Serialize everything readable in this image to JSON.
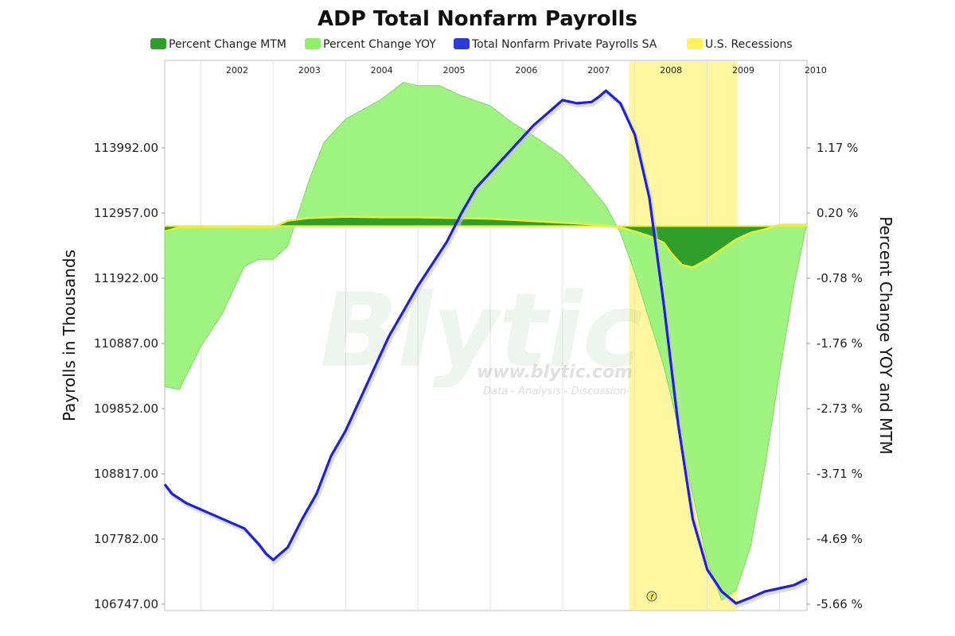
{
  "chart_data": {
    "type": "line",
    "title": "ADP Total Nonfarm Payrolls",
    "ylabel": "Payrolls in Thousands",
    "ylabel_right": "Percent Change YOY and MTM",
    "ylim": [
      106747,
      114500
    ],
    "ylim_right": [
      -5.66,
      1.8
    ],
    "xlim": [
      2001.5,
      2010.38
    ],
    "years": [
      2002,
      2003,
      2004,
      2005,
      2006,
      2007,
      2008,
      2009,
      2010
    ],
    "y_ticks": [
      "113992.00",
      "112957.00",
      "111922.00",
      "110887.00",
      "109852.00",
      "108817.00",
      "107782.00",
      "106747.00"
    ],
    "y_ticks_right": [
      "1.17 %",
      "0.20 %",
      "-0.78 %",
      "-1.76 %",
      "-2.73 %",
      "-3.71 %",
      "-4.69 %",
      "-5.66 %"
    ],
    "legend_position": "top",
    "grid": true,
    "series": [
      {
        "name": "Percent Change MTM",
        "kind": "area",
        "color": "#2f9e2a",
        "x": [
          2001.5,
          2001.7,
          2002.0,
          2002.3,
          2002.6,
          2003.0,
          2003.2,
          2003.5,
          2004.0,
          2004.5,
          2005.0,
          2005.5,
          2006.0,
          2006.5,
          2007.0,
          2007.5,
          2007.8,
          2008.0,
          2008.2,
          2008.4,
          2008.5,
          2008.65,
          2008.8,
          2009.0,
          2009.2,
          2009.4,
          2009.6,
          2009.8,
          2010.0,
          2010.38
        ],
        "y": [
          -0.08,
          -0.02,
          -0.02,
          -0.01,
          -0.02,
          -0.02,
          0.08,
          0.12,
          0.14,
          0.13,
          0.13,
          0.12,
          0.11,
          0.08,
          0.05,
          0.02,
          -0.02,
          -0.08,
          -0.15,
          -0.25,
          -0.4,
          -0.58,
          -0.62,
          -0.5,
          -0.35,
          -0.2,
          -0.1,
          -0.05,
          0.02,
          0.02
        ]
      },
      {
        "name": "Percent Change YOY",
        "kind": "area",
        "color": "#99f27a",
        "x": [
          2001.5,
          2001.7,
          2002.0,
          2002.3,
          2002.6,
          2002.8,
          2003.0,
          2003.2,
          2003.5,
          2003.7,
          2004.0,
          2004.5,
          2004.8,
          2005.0,
          2005.3,
          2005.6,
          2006.0,
          2006.3,
          2006.6,
          2007.0,
          2007.3,
          2007.6,
          2007.8,
          2008.0,
          2008.2,
          2008.4,
          2008.6,
          2008.8,
          2009.0,
          2009.2,
          2009.4,
          2009.6,
          2009.8,
          2010.0,
          2010.2,
          2010.38
        ],
        "y": [
          -2.4,
          -2.45,
          -1.8,
          -1.3,
          -0.6,
          -0.5,
          -0.5,
          -0.3,
          0.7,
          1.25,
          1.6,
          1.9,
          2.15,
          2.1,
          2.1,
          1.95,
          1.8,
          1.55,
          1.35,
          1.05,
          0.7,
          0.3,
          -0.1,
          -0.7,
          -1.4,
          -2.1,
          -3.0,
          -4.0,
          -5.0,
          -5.6,
          -5.45,
          -4.8,
          -3.6,
          -2.2,
          -0.9,
          0.05
        ]
      },
      {
        "name": "Total Nonfarm Private Payrolls SA",
        "kind": "line",
        "color": "#1f1fe0",
        "x": [
          2001.5,
          2001.6,
          2001.8,
          2002.0,
          2002.2,
          2002.4,
          2002.6,
          2002.8,
          2002.9,
          2003.0,
          2003.2,
          2003.4,
          2003.6,
          2003.8,
          2004.0,
          2004.2,
          2004.4,
          2004.6,
          2004.8,
          2005.0,
          2005.2,
          2005.4,
          2005.6,
          2005.8,
          2006.0,
          2006.2,
          2006.4,
          2006.6,
          2006.8,
          2007.0,
          2007.2,
          2007.4,
          2007.5,
          2007.6,
          2007.8,
          2008.0,
          2008.2,
          2008.4,
          2008.6,
          2008.8,
          2009.0,
          2009.2,
          2009.4,
          2009.6,
          2009.8,
          2010.0,
          2010.2,
          2010.38
        ],
        "y": [
          108650,
          108500,
          108350,
          108250,
          108150,
          108050,
          107950,
          107700,
          107550,
          107450,
          107650,
          108100,
          108500,
          109100,
          109500,
          110000,
          110500,
          111000,
          111400,
          111800,
          112150,
          112500,
          112950,
          113350,
          113600,
          113850,
          114100,
          114350,
          114550,
          114750,
          114700,
          114720,
          114800,
          114900,
          114700,
          114200,
          113200,
          111500,
          109600,
          108100,
          107300,
          106950,
          106760,
          106850,
          106950,
          107000,
          107050,
          107150
        ]
      },
      {
        "name": "U.S. Recessions",
        "kind": "band",
        "color": "#fff7a0",
        "x_start": 2007.92,
        "x_end": 2009.42
      }
    ]
  },
  "legend": [
    {
      "label": "Percent Change MTM",
      "color": "#2f9e2a"
    },
    {
      "label": "Percent Change YOY",
      "color": "#8ff06a"
    },
    {
      "label": "Total Nonfarm Private Payrolls SA",
      "color": "#2b3bd8"
    },
    {
      "label": "U.S. Recessions",
      "color": "#fff25a"
    }
  ],
  "watermark": {
    "brand": "Blytic",
    "url": "www.blytic.com",
    "tagline": "Data - Analysis - Discussion"
  },
  "annotation_marker": "f"
}
